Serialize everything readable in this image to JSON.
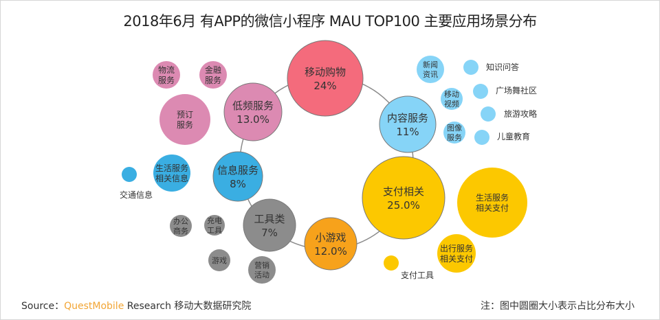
{
  "title": "2018年6月 有APP的微信小程序 MAU TOP100 主要应用场景分布",
  "colors": {
    "shopping": "#f46b7c",
    "low_freq": "#dc8ab2",
    "info": "#3aaee2",
    "content": "#86d4f7",
    "payment": "#fcc800",
    "game": "#f7a21b",
    "tools": "#8c8c8c",
    "ring": "#8a8a8a"
  },
  "main_bubbles": [
    {
      "label": "移动购物",
      "percent": "24%",
      "color_key": "shopping"
    },
    {
      "label": "低频服务",
      "percent": "13.0%",
      "color_key": "low_freq"
    },
    {
      "label": "内容服务",
      "percent": "11%",
      "color_key": "content"
    },
    {
      "label": "信息服务",
      "percent": "8%",
      "color_key": "info"
    },
    {
      "label": "支付相关",
      "percent": "25.0%",
      "color_key": "payment"
    },
    {
      "label": "工具类",
      "percent": "7%",
      "color_key": "tools"
    },
    {
      "label": "小游戏",
      "percent": "12.0%",
      "color_key": "game"
    }
  ],
  "sub_bubbles": [
    {
      "lines": [
        "物流",
        "服务"
      ],
      "color_key": "low_freq"
    },
    {
      "lines": [
        "金融",
        "服务"
      ],
      "color_key": "low_freq"
    },
    {
      "lines": [
        "预订",
        "服务"
      ],
      "color_key": "low_freq"
    },
    {
      "lines": [
        "生活服务",
        "相关信息"
      ],
      "color_key": "info"
    },
    {
      "lines": [
        "办公",
        "商务"
      ],
      "color_key": "tools"
    },
    {
      "lines": [
        "充电",
        "工具"
      ],
      "color_key": "tools"
    },
    {
      "lines": [
        "游戏"
      ],
      "color_key": "tools"
    },
    {
      "lines": [
        "营销",
        "活动"
      ],
      "color_key": "tools"
    },
    {
      "lines": [
        "新闻",
        "资讯"
      ],
      "color_key": "content"
    },
    {
      "lines": [
        "移动",
        "视频"
      ],
      "color_key": "content"
    },
    {
      "lines": [
        "图像",
        "服务"
      ],
      "color_key": "content"
    },
    {
      "lines": [
        "生活服务",
        "相关支付"
      ],
      "color_key": "payment"
    },
    {
      "lines": [
        "出行服务",
        "相关支付"
      ],
      "color_key": "payment"
    }
  ],
  "dot_items": [
    {
      "label": "交通信息",
      "color_key": "info"
    },
    {
      "label": "知识问答",
      "color_key": "content"
    },
    {
      "label": "广场舞社区",
      "color_key": "content"
    },
    {
      "label": "旅游攻略",
      "color_key": "content"
    },
    {
      "label": "儿童教育",
      "color_key": "content"
    },
    {
      "label": "支付工具",
      "color_key": "payment"
    }
  ],
  "footer": {
    "source_prefix": "Source：",
    "source_brand": "QuestMobile",
    "source_suffix": " Research 移动大数据研究院",
    "note": "注：图中圆圈大小表示占比分布大小"
  }
}
